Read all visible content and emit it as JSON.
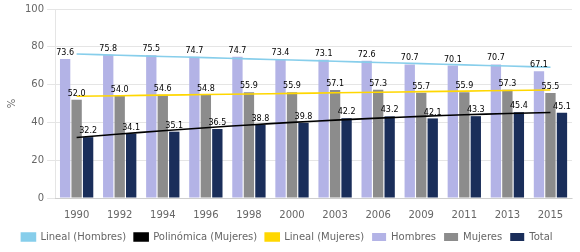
{
  "chart_data": {
    "type": "bar",
    "categories": [
      "1990",
      "1992",
      "1994",
      "1996",
      "1998",
      "2000",
      "2003",
      "2006",
      "2009",
      "2011",
      "2013",
      "2015"
    ],
    "y_label": "%",
    "ylim": [
      0,
      100
    ],
    "yticks": [
      0,
      20,
      40,
      60,
      80,
      100
    ],
    "grid": true,
    "legend": "bottom",
    "data_labels": true,
    "series": [
      {
        "name": "Hombres",
        "type": "bar",
        "color": "#b3b3e6",
        "values": [
          73.6,
          75.8,
          75.5,
          74.7,
          74.7,
          73.4,
          73.1,
          72.6,
          70.7,
          70.1,
          70.7,
          67.1
        ],
        "value_labels": [
          "73.6",
          "75.8",
          "75.5",
          "74.7",
          "74.7",
          "73.4",
          "73.1",
          "72.6",
          "70.7",
          "70.1",
          "70.7",
          "67.1"
        ]
      },
      {
        "name": "Mujeres",
        "type": "bar",
        "color": "#8c8c8c",
        "values": [
          52.0,
          54.0,
          54.6,
          54.8,
          55.9,
          55.9,
          57.1,
          57.3,
          55.7,
          55.9,
          57.3,
          55.5
        ],
        "value_labels": [
          "52.0",
          "54.0",
          "54.6",
          "54.8",
          "55.9",
          "55.9",
          "57.1",
          "57.3",
          "55.7",
          "55.9",
          "57.3",
          "55.5"
        ]
      },
      {
        "name": "Total",
        "type": "bar",
        "color": "#1a2e5a",
        "values": [
          32.2,
          34.1,
          35.1,
          36.5,
          38.8,
          39.8,
          42.2,
          43.2,
          42.1,
          43.3,
          45.4,
          45.1
        ],
        "value_labels": [
          "32.2",
          "34.1",
          "35.1",
          "36.5",
          "38.8",
          "39.8",
          "42.2",
          "43.2",
          "42.1",
          "43.3",
          "45.4",
          "45.1"
        ]
      },
      {
        "name": "Lineal (Hombres)",
        "type": "line",
        "color": "#87CEEB",
        "values": [
          76.16,
          75.53,
          74.89,
          74.26,
          73.62,
          72.98,
          72.35,
          71.71,
          71.08,
          70.44,
          69.81,
          69.17
        ]
      },
      {
        "name": "Polinómica (Mujeres)",
        "type": "line",
        "color": "#000000",
        "values": [
          31.97,
          33.84,
          35.58,
          37.18,
          38.65,
          39.99,
          41.2,
          42.27,
          43.21,
          44.01,
          44.68,
          45.22
        ]
      },
      {
        "name": "Lineal (Mujeres)",
        "type": "line",
        "color": "#FFD700",
        "values": [
          53.82,
          54.13,
          54.43,
          54.74,
          55.04,
          55.35,
          55.65,
          55.96,
          56.26,
          56.57,
          56.87,
          57.18
        ]
      }
    ]
  }
}
